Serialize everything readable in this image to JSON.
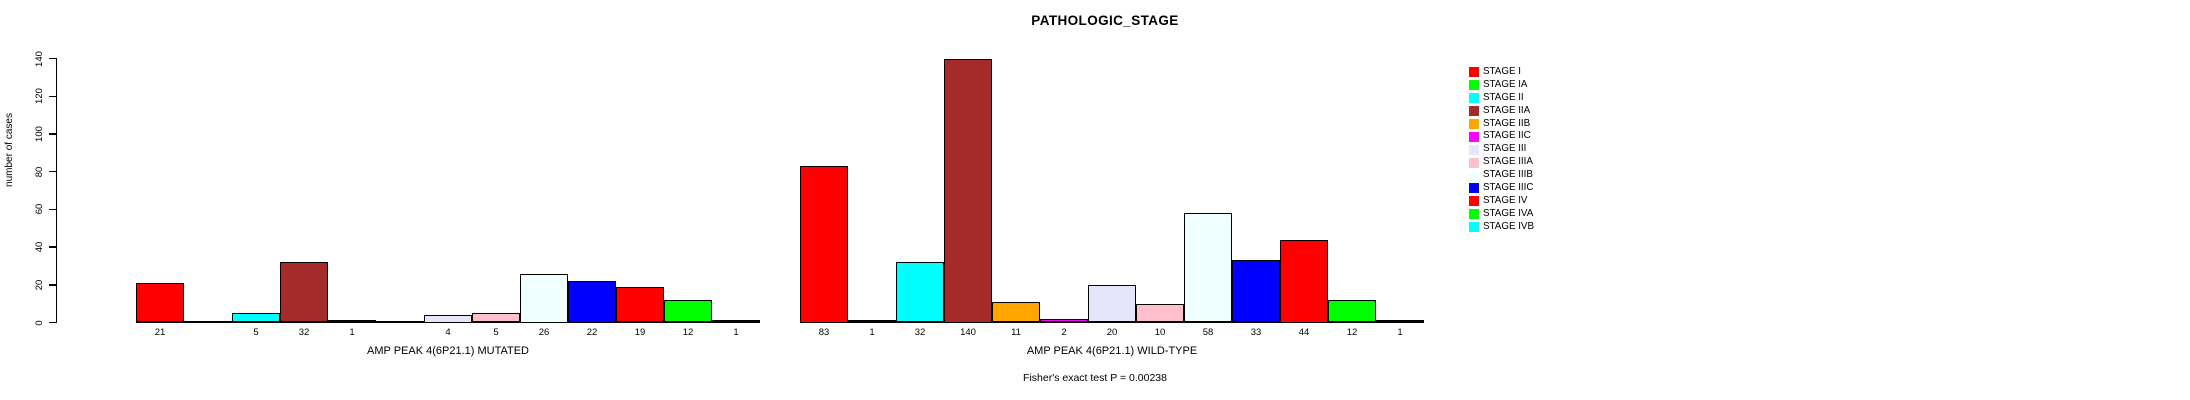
{
  "title": "PATHOLOGIC_STAGE",
  "chart_data": {
    "type": "bar",
    "title": "PATHOLOGIC_STAGE",
    "ylabel": "number of cases",
    "ylim": [
      0,
      140
    ],
    "yticks": [
      0,
      20,
      40,
      60,
      80,
      100,
      120,
      140
    ],
    "grid": false,
    "legend_position": "right",
    "categories": [
      "STAGE I",
      "STAGE IA",
      "STAGE II",
      "STAGE IIA",
      "STAGE IIB",
      "STAGE IIC",
      "STAGE III",
      "STAGE IIIA",
      "STAGE IIIB",
      "STAGE IIIC",
      "STAGE IV",
      "STAGE IVA",
      "STAGE IVB"
    ],
    "colors": [
      "#FF0000",
      "#00FF00",
      "#00FFFF",
      "#A52A2A",
      "#FFA500",
      "#FF00FF",
      "#E6E6FA",
      "#FFC0CB",
      "#F0FFFF",
      "#0000FF",
      "#FF0000",
      "#00FF00",
      "#00FFFF"
    ],
    "groups": [
      {
        "label": "AMP PEAK 4(6P21.1) MUTATED",
        "values": [
          21,
          0,
          5,
          32,
          1,
          0,
          4,
          5,
          26,
          22,
          19,
          12,
          1
        ]
      },
      {
        "label": "AMP PEAK 4(6P21.1) WILD-TYPE",
        "values": [
          83,
          1,
          32,
          140,
          11,
          2,
          20,
          10,
          58,
          33,
          44,
          12,
          1
        ]
      }
    ],
    "bar_label_rule": "value shown under each bar when value > 0",
    "annotation": "Fisher's exact test P = 0.00238"
  }
}
